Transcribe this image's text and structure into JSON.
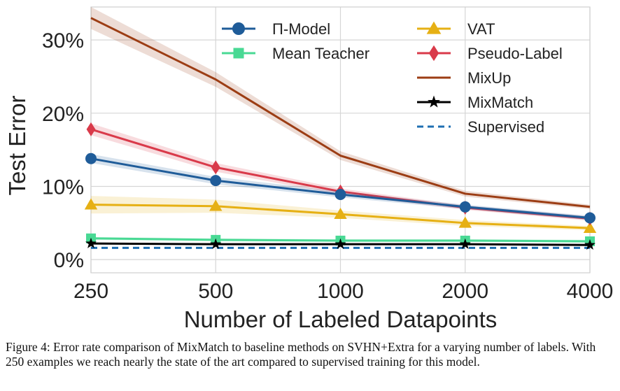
{
  "chart_data": {
    "type": "line",
    "xlabel": "Number of Labeled Datapoints",
    "ylabel": "Test Error",
    "categories": [
      "250",
      "500",
      "1000",
      "2000",
      "4000"
    ],
    "yticks": [
      "0%",
      "10%",
      "20%",
      "30%"
    ],
    "ytick_values": [
      0,
      10,
      20,
      30
    ],
    "ylim": [
      -1.8,
      34.5
    ],
    "grid": true,
    "legend_position": "top-center",
    "series": [
      {
        "name": "Π-Model",
        "values": [
          13.8,
          10.8,
          8.9,
          7.2,
          5.7
        ],
        "band": [
          0.6,
          0.5,
          0.4,
          0.3,
          0.3
        ],
        "color": "#1f5c99",
        "marker": "circle",
        "dash": "solid"
      },
      {
        "name": "Mean Teacher",
        "values": [
          2.9,
          2.7,
          2.6,
          2.6,
          2.5
        ],
        "band": [
          0.2,
          0.2,
          0.2,
          0.2,
          0.2
        ],
        "color": "#49d994",
        "marker": "square",
        "dash": "solid"
      },
      {
        "name": "VAT",
        "values": [
          7.5,
          7.3,
          6.2,
          5.0,
          4.3
        ],
        "band": [
          1.2,
          0.9,
          0.5,
          0.4,
          0.3
        ],
        "color": "#e6b014",
        "marker": "triangle",
        "dash": "solid"
      },
      {
        "name": "Pseudo-Label",
        "values": [
          17.8,
          12.6,
          9.3,
          7.1,
          5.6
        ],
        "band": [
          0.8,
          0.6,
          0.4,
          0.3,
          0.3
        ],
        "color": "#d93a4a",
        "marker": "diamond",
        "dash": "solid"
      },
      {
        "name": "MixUp",
        "values": [
          33.0,
          24.6,
          14.2,
          9.0,
          7.2
        ],
        "band": [
          1.5,
          1.0,
          0.6,
          0.4,
          0.3
        ],
        "color": "#9c3d14",
        "marker": "none",
        "dash": "solid"
      },
      {
        "name": "MixMatch",
        "values": [
          2.2,
          2.1,
          2.1,
          2.1,
          2.0
        ],
        "band": [
          0.1,
          0.1,
          0.1,
          0.1,
          0.1
        ],
        "color": "#000000",
        "marker": "star",
        "dash": "solid"
      },
      {
        "name": "Supervised",
        "values": [
          1.6,
          1.6,
          1.6,
          1.6,
          1.6
        ],
        "band": [
          0,
          0,
          0,
          0,
          0
        ],
        "color": "#1f6fb2",
        "marker": "none",
        "dash": "dashed"
      }
    ]
  },
  "caption": "Figure 4: Error rate comparison of MixMatch to baseline methods on SVHN+Extra for a varying number of labels. With 250 examples we reach nearly the state of the art compared to supervised training for this model."
}
